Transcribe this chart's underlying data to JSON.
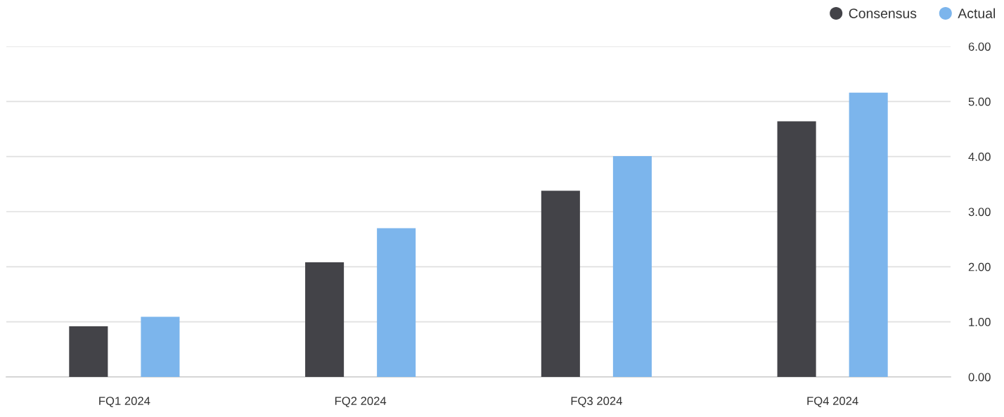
{
  "chart_data": {
    "type": "bar",
    "categories": [
      "FQ1 2024",
      "FQ2 2024",
      "FQ3 2024",
      "FQ4 2024"
    ],
    "series": [
      {
        "name": "Consensus",
        "color": "#434348",
        "values": [
          0.92,
          2.08,
          3.38,
          4.64
        ]
      },
      {
        "name": "Actual",
        "color": "#7cb5ec",
        "values": [
          1.09,
          2.7,
          4.01,
          5.16
        ]
      }
    ],
    "ylim": [
      0,
      6
    ],
    "yticks": [
      {
        "value": 0,
        "label": "0.00"
      },
      {
        "value": 1,
        "label": "1.00"
      },
      {
        "value": 2,
        "label": "2.00"
      },
      {
        "value": 3,
        "label": "3.00"
      },
      {
        "value": 4,
        "label": "4.00"
      },
      {
        "value": 5,
        "label": "5.00"
      },
      {
        "value": 6,
        "label": "6.00"
      }
    ],
    "grid": "y",
    "legend": "top right"
  }
}
